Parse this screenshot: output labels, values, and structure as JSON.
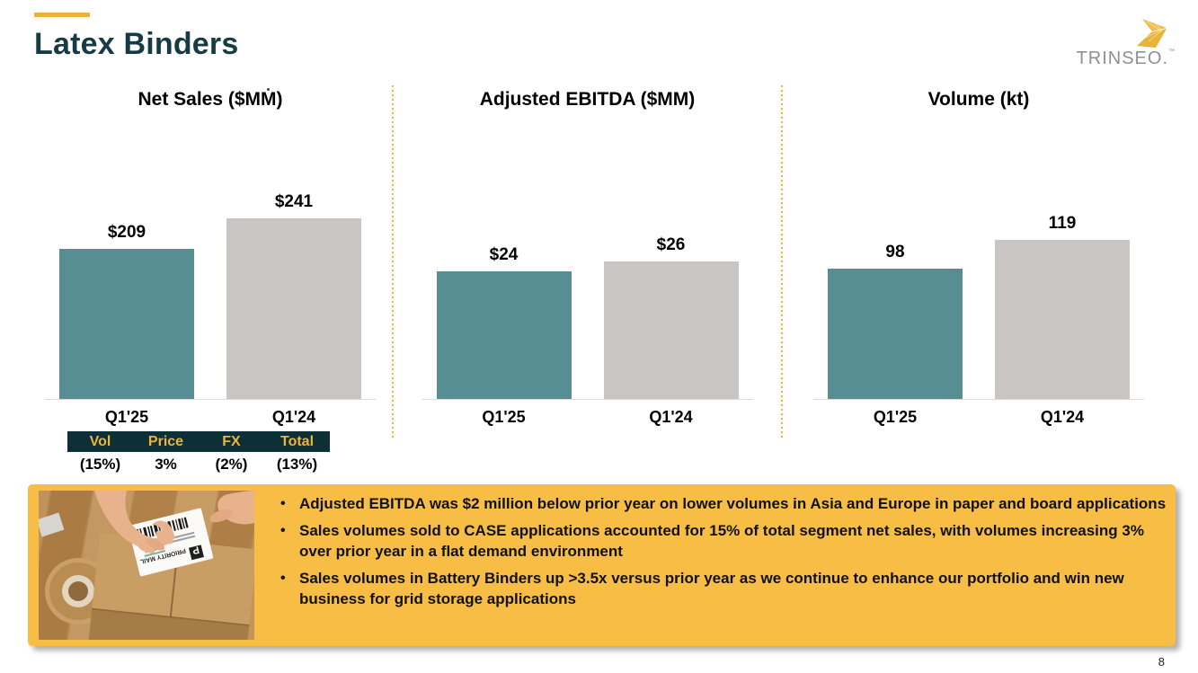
{
  "slide": {
    "title": "Latex Binders",
    "page_number": "8"
  },
  "logo": {
    "text": "TRINSEO.",
    "trademark": "™"
  },
  "colors": {
    "accent_gold": "#E9B33C",
    "title_teal": "#163B45",
    "bar_current": "#578E94",
    "bar_prior": "#C8C5C3",
    "panel_yellow": "#F7BD45",
    "table_header_bg": "#0D3036",
    "table_header_text": "#EAB53F",
    "axis_line": "#D9D9D9",
    "logo_gray": "#8E9094"
  },
  "chart_data": [
    {
      "type": "bar",
      "title": "Net Sales ($MM)",
      "categories": [
        "Q1'25",
        "Q1'24"
      ],
      "values": [
        209,
        241
      ],
      "data_labels": [
        "$209",
        "$241"
      ],
      "ylim": [
        100,
        250
      ],
      "grid": false,
      "legend": false
    },
    {
      "type": "bar",
      "title": "Adjusted EBITDA ($MM)",
      "categories": [
        "Q1'25",
        "Q1'24"
      ],
      "values": [
        24,
        26
      ],
      "data_labels": [
        "$24",
        "$26"
      ],
      "ylim": [
        0,
        39
      ],
      "grid": false,
      "legend": false
    },
    {
      "type": "bar",
      "title": "Volume (kt)",
      "categories": [
        "Q1'25",
        "Q1'24"
      ],
      "values": [
        98,
        119
      ],
      "data_labels": [
        "98",
        "119"
      ],
      "ylim": [
        0,
        155
      ],
      "grid": false,
      "legend": false
    }
  ],
  "bridge_table": {
    "headers": [
      "Vol",
      "Price",
      "FX",
      "Total"
    ],
    "values": [
      "(15%)",
      "3%",
      "(2%)",
      "(13%)"
    ]
  },
  "highlights": {
    "bullets": [
      "Adjusted EBITDA was $2 million below prior year on lower volumes in Asia and Europe in paper and board applications",
      "Sales volumes sold to CASE applications accounted for 15% of total segment net sales, with volumes increasing 3% over prior year in a flat demand environment",
      "Sales volumes in Battery Binders up >3.5x versus prior year as we continue to enhance our portfolio and win new business for grid storage applications"
    ],
    "photo_label_text": "PRIORITY MAIL",
    "photo_label_monogram": "P"
  }
}
